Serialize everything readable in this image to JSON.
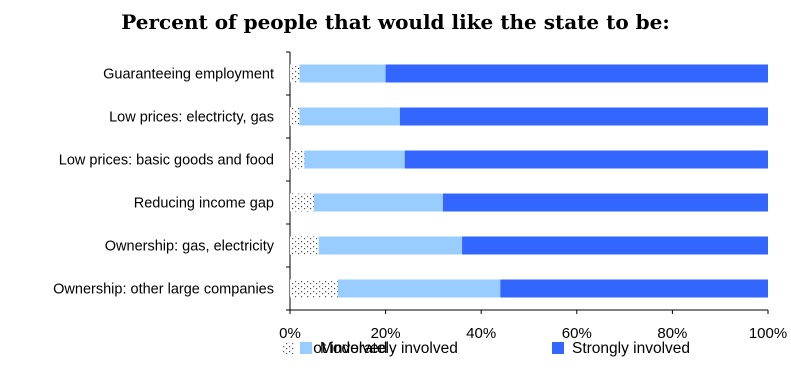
{
  "chart_data": {
    "type": "bar",
    "orientation": "horizontal",
    "stacked": true,
    "title": "Percent of people that would like the state to be:",
    "categories": [
      "Guaranteeing employment",
      "Low prices: electricty, gas",
      "Low prices: basic goods and food",
      "Reducing income gap",
      "Ownership: gas, electricity",
      "Ownership: other large companies"
    ],
    "series": [
      {
        "name": "Not involved",
        "values": [
          2,
          2,
          3,
          5,
          6,
          10
        ]
      },
      {
        "name": "Moderately involved",
        "values": [
          18,
          21,
          21,
          27,
          30,
          34
        ]
      },
      {
        "name": "Strongly involved",
        "values": [
          80,
          77,
          76,
          68,
          64,
          56
        ]
      }
    ],
    "xlim": [
      0,
      100
    ],
    "xticks": [
      "0%",
      "20%",
      "40%",
      "60%",
      "80%",
      "100%"
    ],
    "xlabel": "",
    "ylabel": "",
    "grid": false,
    "legend_position": "bottom",
    "colors": [
      "#ffffff",
      "#99ccff",
      "#3366ff"
    ]
  }
}
